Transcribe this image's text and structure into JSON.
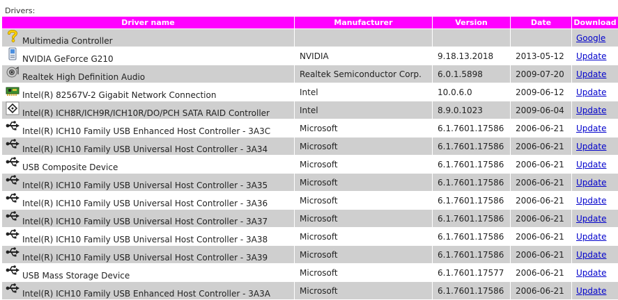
{
  "caption": "Drivers:",
  "colors": {
    "header_bg": "#ff00ff",
    "header_text": "#ffffff",
    "row_gray": "#cfcfcf",
    "link": "#0000cc"
  },
  "columns": [
    "Driver name",
    "Manufacturer",
    "Version",
    "Date",
    "Download"
  ],
  "rows": [
    {
      "icon": "unknown-device-icon",
      "name": "Multimedia Controller",
      "manufacturer": "",
      "version": "",
      "date": "",
      "download": "Google"
    },
    {
      "icon": "display-adapter-icon",
      "name": "NVIDIA GeForce G210",
      "manufacturer": "NVIDIA",
      "version": "9.18.13.2018",
      "date": "2013-05-12",
      "download": "Update"
    },
    {
      "icon": "audio-device-icon",
      "name": "Realtek High Definition Audio",
      "manufacturer": "Realtek Semiconductor Corp.",
      "version": "6.0.1.5898",
      "date": "2009-07-20",
      "download": "Update"
    },
    {
      "icon": "network-card-icon",
      "name": "Intel(R) 82567V-2 Gigabit Network Connection",
      "manufacturer": "Intel",
      "version": "10.0.6.0",
      "date": "2009-06-12",
      "download": "Update"
    },
    {
      "icon": "storage-controller-icon",
      "name": "Intel(R) ICH8R/ICH9R/ICH10R/DO/PCH SATA RAID Controller",
      "manufacturer": "Intel",
      "version": "8.9.0.1023",
      "date": "2009-06-04",
      "download": "Update"
    },
    {
      "icon": "usb-icon",
      "name": "Intel(R) ICH10 Family USB Enhanced Host Controller - 3A3C",
      "manufacturer": "Microsoft",
      "version": "6.1.7601.17586",
      "date": "2006-06-21",
      "download": "Update"
    },
    {
      "icon": "usb-icon",
      "name": "Intel(R) ICH10 Family USB Universal Host Controller - 3A34",
      "manufacturer": "Microsoft",
      "version": "6.1.7601.17586",
      "date": "2006-06-21",
      "download": "Update"
    },
    {
      "icon": "usb-icon",
      "name": "USB Composite Device",
      "manufacturer": "Microsoft",
      "version": "6.1.7601.17586",
      "date": "2006-06-21",
      "download": "Update"
    },
    {
      "icon": "usb-icon",
      "name": "Intel(R) ICH10 Family USB Universal Host Controller - 3A35",
      "manufacturer": "Microsoft",
      "version": "6.1.7601.17586",
      "date": "2006-06-21",
      "download": "Update"
    },
    {
      "icon": "usb-icon",
      "name": "Intel(R) ICH10 Family USB Universal Host Controller - 3A36",
      "manufacturer": "Microsoft",
      "version": "6.1.7601.17586",
      "date": "2006-06-21",
      "download": "Update"
    },
    {
      "icon": "usb-icon",
      "name": "Intel(R) ICH10 Family USB Universal Host Controller - 3A37",
      "manufacturer": "Microsoft",
      "version": "6.1.7601.17586",
      "date": "2006-06-21",
      "download": "Update"
    },
    {
      "icon": "usb-icon",
      "name": "Intel(R) ICH10 Family USB Universal Host Controller - 3A38",
      "manufacturer": "Microsoft",
      "version": "6.1.7601.17586",
      "date": "2006-06-21",
      "download": "Update"
    },
    {
      "icon": "usb-icon",
      "name": "Intel(R) ICH10 Family USB Universal Host Controller - 3A39",
      "manufacturer": "Microsoft",
      "version": "6.1.7601.17586",
      "date": "2006-06-21",
      "download": "Update"
    },
    {
      "icon": "usb-icon",
      "name": "USB Mass Storage Device",
      "manufacturer": "Microsoft",
      "version": "6.1.7601.17577",
      "date": "2006-06-21",
      "download": "Update"
    },
    {
      "icon": "usb-icon",
      "name": "Intel(R) ICH10 Family USB Enhanced Host Controller - 3A3A",
      "manufacturer": "Microsoft",
      "version": "6.1.7601.17586",
      "date": "2006-06-21",
      "download": "Update"
    }
  ]
}
